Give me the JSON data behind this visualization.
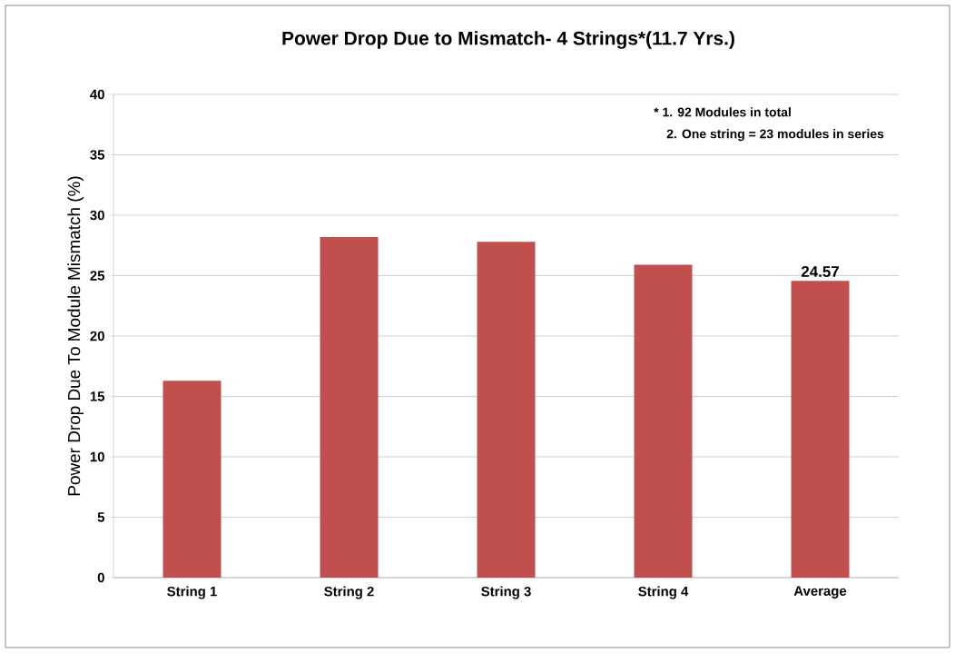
{
  "chart_data": {
    "type": "bar",
    "title": "Power Drop Due to Mismatch- 4 Strings*(11.7 Yrs.)",
    "ylabel": "Power Drop Due To Module Mismatch (%)",
    "categories": [
      "String 1",
      "String 2",
      "String 3",
      "String 4",
      "Average"
    ],
    "values": [
      16.3,
      28.2,
      27.8,
      25.9,
      24.57
    ],
    "value_labels": [
      null,
      null,
      null,
      null,
      "24.57"
    ],
    "color": "#c0504d",
    "ylim": [
      0,
      40
    ],
    "yticks": [
      0,
      5,
      10,
      15,
      20,
      25,
      30,
      35,
      40
    ],
    "grid": "y",
    "annotations": [
      "* 1. 92 Modules in total",
      "2. One string = 23 modules in series"
    ]
  }
}
